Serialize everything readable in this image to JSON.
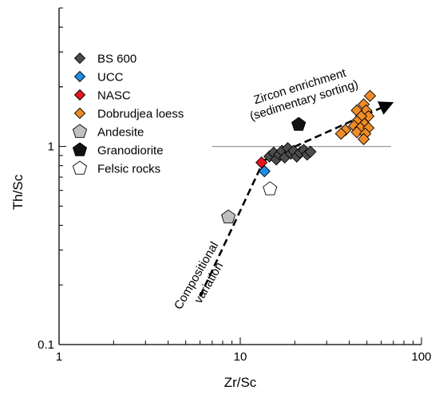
{
  "chart_data": {
    "type": "scatter",
    "x_scale": "log",
    "y_scale": "log",
    "xlim": [
      1,
      100
    ],
    "ylim": [
      0.1,
      5
    ],
    "xlabel": "Zr/Sc",
    "ylabel": "Th/Sc",
    "x_ticks": [
      {
        "value": 1,
        "label": "1"
      },
      {
        "value": 10,
        "label": "10"
      },
      {
        "value": 100,
        "label": "100"
      }
    ],
    "y_ticks": [
      {
        "value": 0.1,
        "label": "0.1"
      },
      {
        "value": 1,
        "label": "1"
      }
    ],
    "grid": false,
    "legend_position": "top-left",
    "reference_line": {
      "y": 1.0,
      "x_range": [
        7,
        68
      ],
      "color": "#9a9a9a"
    },
    "series": [
      {
        "name": "BS 600",
        "marker": "diamond",
        "color": "#4d4d4d",
        "points": [
          {
            "x": 14.5,
            "y": 0.89
          },
          {
            "x": 15.3,
            "y": 0.93
          },
          {
            "x": 15.8,
            "y": 0.86
          },
          {
            "x": 16.4,
            "y": 0.91
          },
          {
            "x": 17.0,
            "y": 0.95
          },
          {
            "x": 17.6,
            "y": 0.88
          },
          {
            "x": 18.3,
            "y": 0.98
          },
          {
            "x": 19.0,
            "y": 0.92
          },
          {
            "x": 19.7,
            "y": 0.95
          },
          {
            "x": 20.5,
            "y": 0.89
          },
          {
            "x": 21.4,
            "y": 0.93
          },
          {
            "x": 22.4,
            "y": 0.96
          },
          {
            "x": 23.4,
            "y": 0.91
          },
          {
            "x": 24.4,
            "y": 0.94
          }
        ]
      },
      {
        "name": "UCC",
        "marker": "diamond",
        "color": "#1e8fe6",
        "points": [
          {
            "x": 13.6,
            "y": 0.75
          }
        ]
      },
      {
        "name": "NASC",
        "marker": "diamond",
        "color": "#e8141e",
        "points": [
          {
            "x": 13.1,
            "y": 0.83
          }
        ]
      },
      {
        "name": "Dobrudjea loess",
        "marker": "diamond",
        "color": "#f08c28",
        "points": [
          {
            "x": 52.0,
            "y": 1.8
          },
          {
            "x": 48.0,
            "y": 1.63
          },
          {
            "x": 49.5,
            "y": 1.52
          },
          {
            "x": 44.0,
            "y": 1.52
          },
          {
            "x": 51.0,
            "y": 1.42
          },
          {
            "x": 46.5,
            "y": 1.42
          },
          {
            "x": 44.0,
            "y": 1.34
          },
          {
            "x": 48.5,
            "y": 1.3
          },
          {
            "x": 42.5,
            "y": 1.27
          },
          {
            "x": 46.0,
            "y": 1.24
          },
          {
            "x": 51.0,
            "y": 1.24
          },
          {
            "x": 38.0,
            "y": 1.21
          },
          {
            "x": 44.0,
            "y": 1.18
          },
          {
            "x": 36.0,
            "y": 1.16
          },
          {
            "x": 49.0,
            "y": 1.16
          },
          {
            "x": 48.0,
            "y": 1.09
          }
        ]
      },
      {
        "name": "Andesite",
        "marker": "pentagon",
        "color": "#c0c0c0",
        "points": [
          {
            "x": 8.6,
            "y": 0.44
          }
        ]
      },
      {
        "name": "Granodiorite",
        "marker": "pentagon",
        "color": "#111111",
        "points": [
          {
            "x": 21.0,
            "y": 1.29
          }
        ]
      },
      {
        "name": "Felsic rocks",
        "marker": "pentagon",
        "color": "#ffffff",
        "points": [
          {
            "x": 14.6,
            "y": 0.61
          }
        ]
      }
    ],
    "annotations": [
      {
        "lines": [
          "Zircon enrichment",
          "(sedimentary sorting)"
        ],
        "arrow_from": [
          13.5,
          0.85
        ],
        "arrow_to": [
          68,
          1.65
        ]
      },
      {
        "lines": [
          "Compositional",
          "variation"
        ],
        "arrow_from": [
          6.0,
          0.175
        ],
        "arrow_to": [
          13.5,
          0.85
        ]
      }
    ]
  }
}
